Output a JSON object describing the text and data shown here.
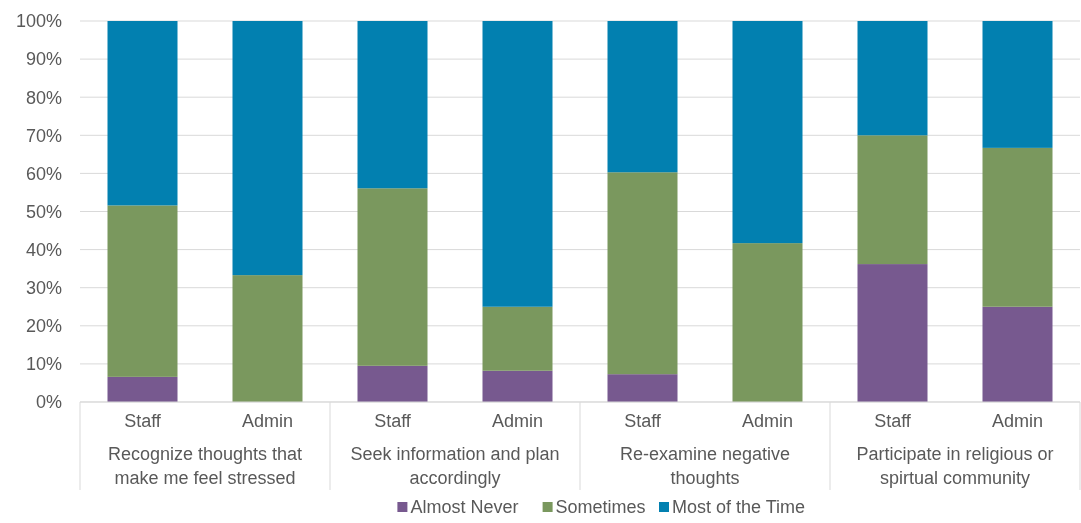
{
  "chart_data": {
    "type": "bar",
    "stacked": true,
    "categories": [
      "Staff",
      "Admin",
      "Staff",
      "Admin",
      "Staff",
      "Admin",
      "Staff",
      "Admin"
    ],
    "annotations": [
      "Recognize thoughts that make me feel stressed",
      "Seek information and plan accordingly",
      "Re-examine negative thoughts",
      "Participate in religious or spirtual community"
    ],
    "series": [
      {
        "name": "Almost Never",
        "color": "#77598f",
        "values": [
          6.6,
          0,
          9.5,
          8.2,
          7.3,
          0,
          36.2,
          25.0
        ]
      },
      {
        "name": "Sometimes",
        "color": "#7a985e",
        "values": [
          45.0,
          33.3,
          46.6,
          16.8,
          53.0,
          41.7,
          33.8,
          41.7
        ]
      },
      {
        "name": "Most of the Time",
        "color": "#0280b0",
        "values": [
          48.4,
          66.7,
          43.9,
          75.0,
          39.7,
          58.3,
          30.0,
          33.3
        ]
      }
    ],
    "ylim": [
      0,
      100
    ],
    "yticks": [
      {
        "value": 0,
        "label": "0%"
      },
      {
        "value": 10,
        "label": "10%"
      },
      {
        "value": 20,
        "label": "20%"
      },
      {
        "value": 30,
        "label": "30%"
      },
      {
        "value": 40,
        "label": "40%"
      },
      {
        "value": 50,
        "label": "50%"
      },
      {
        "value": 60,
        "label": "60%"
      },
      {
        "value": 70,
        "label": "70%"
      },
      {
        "value": 80,
        "label": "80%"
      },
      {
        "value": 90,
        "label": "90%"
      },
      {
        "value": 100,
        "label": "100%"
      }
    ],
    "grid": "y",
    "legend": "bottom"
  }
}
